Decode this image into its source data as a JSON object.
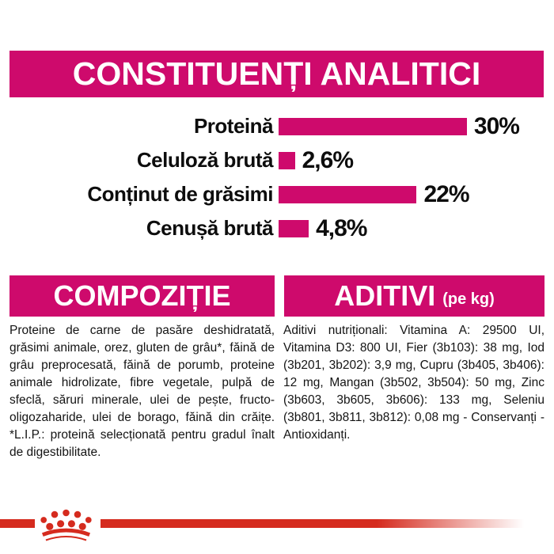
{
  "colors": {
    "magenta": "#CE0A6C",
    "brand_red": "#D52B1E",
    "text": "#141414"
  },
  "header": {
    "title": "CONSTITUENȚI ANALITICI"
  },
  "chart_data": {
    "type": "bar",
    "orientation": "horizontal",
    "title": "CONSTITUENȚI ANALITICI",
    "categories": [
      "Proteină",
      "Celuloză brută",
      "Conținut de grăsimi",
      "Cenușă brută"
    ],
    "values": [
      30,
      2.6,
      22,
      4.8
    ],
    "value_labels": [
      "30%",
      "2,6%",
      "22%",
      "4,8%"
    ],
    "unit": "%",
    "xlim": [
      0,
      30
    ],
    "bar_color": "#CE0A6C",
    "grid": false,
    "legend": false
  },
  "sections": {
    "composition": {
      "title": "COMPOZIȚIE",
      "body": "Proteine de carne de pasăre deshidratată, grăsimi animale, orez, gluten de grâu*, făină de grâu preprocesată, făină de porumb, proteine animale hidrolizate, fibre vegetale, pulpă de sfeclă, săruri minerale, ulei de pește, fructo-oligozaharide, ulei de borago, făină din crăițe. *L.I.P.: proteină selecționată pentru gradul înalt de digestibilitate."
    },
    "additives": {
      "title": "ADITIVI",
      "title_suffix": "(pe kg)",
      "body": "Aditivi nutriționali: Vitamina A: 29500 UI, Vitamina D3: 800 UI, Fier (3b103): 38 mg, Iod (3b201, 3b202): 3,9 mg, Cupru (3b405, 3b406): 12 mg, Mangan (3b502, 3b504): 50 mg, Zinc (3b603, 3b605, 3b606): 133 mg, Seleniu (3b801, 3b811, 3b812): 0,08 mg - Conservanți - Antioxidanți."
    }
  },
  "footer": {
    "logo": "royal-canin-crown"
  }
}
